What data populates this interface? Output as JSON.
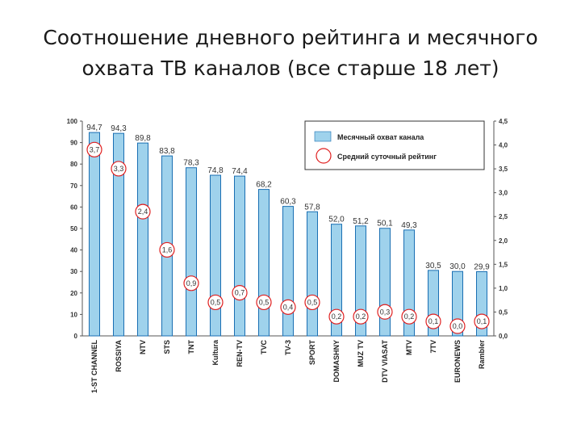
{
  "title": {
    "line1": "Соотношение дневного рейтинга и месячного",
    "line2": "охвата ТВ каналов (все старше 18 лет)"
  },
  "chart_data": {
    "type": "bar",
    "categories": [
      "1-ST CHANNEL",
      "ROSSIYA",
      "NTV",
      "STS",
      "TNT",
      "Kultura",
      "REN-TV",
      "TVC",
      "TV-3",
      "SPORT",
      "DOMASHNY",
      "MUZ TV",
      "DTV VIASAT",
      "MTV",
      "7TV",
      "EURONEWS",
      "Rambler"
    ],
    "series": [
      {
        "name": "Месячный охват канала",
        "axis": "left",
        "color": "#9fd2ec",
        "values": [
          94.7,
          94.3,
          89.8,
          83.8,
          78.3,
          74.8,
          74.4,
          68.2,
          60.3,
          57.8,
          52.0,
          51.2,
          50.1,
          49.3,
          30.5,
          30.0,
          29.9
        ],
        "labels": [
          "94,7",
          "94,3",
          "89,8",
          "83,8",
          "78,3",
          "74,8",
          "74,4",
          "68,2",
          "60,3",
          "57,8",
          "52,0",
          "51,2",
          "50,1",
          "49,3",
          "30,5",
          "30,0",
          "29,9"
        ]
      },
      {
        "name": "Средний суточный рейтинг",
        "axis": "right",
        "color": "#e02020",
        "values": [
          3.7,
          3.3,
          2.4,
          1.6,
          0.9,
          0.5,
          0.7,
          0.5,
          0.4,
          0.5,
          0.2,
          0.2,
          0.3,
          0.2,
          0.1,
          0.0,
          0.1
        ],
        "labels": [
          "3,7",
          "3,3",
          "2,4",
          "1,6",
          "0,9",
          "0,5",
          "0,7",
          "0,5",
          "0,4",
          "0,5",
          "0,2",
          "0,2",
          "0,3",
          "0,2",
          "0,1",
          "0,0",
          "0,1"
        ]
      }
    ],
    "y_left": {
      "range": [
        0,
        100
      ],
      "ticks": [
        "0",
        "10",
        "20",
        "30",
        "40",
        "50",
        "60",
        "70",
        "80",
        "90",
        "100"
      ]
    },
    "y_right": {
      "range": [
        0,
        4.5
      ],
      "ticks": [
        "0,0",
        "0,5",
        "1,0",
        "1,5",
        "2,0",
        "2,5",
        "3,0",
        "3,5",
        "4,0",
        "4,5"
      ]
    },
    "bar_stroke_color": "#1a6fb3",
    "axis_color": "#555555",
    "legend_position": "top-right"
  }
}
